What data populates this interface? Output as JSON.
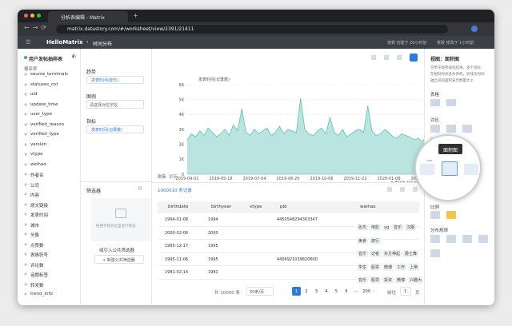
{
  "browser": {
    "tab_title": "分析表编辑 - Matrix",
    "url": "matrix.datastory.com/#/worksheet/view/2391/21411"
  },
  "header": {
    "brand": "HelloMatrix",
    "page": "时间分布",
    "created": "季数 创建于 20小时前",
    "modified": "季数 修改于 1小时前"
  },
  "sidebar": {
    "table_name": "用户发帖抽样表",
    "group": "报名称",
    "fields": [
      "source_terminals",
      "statuses_cnt",
      "uid",
      "update_time",
      "user_type",
      "verified_reason",
      "verified_type",
      "version",
      "vtype",
      "weihao",
      "作者名",
      "公司",
      "内容",
      "原文链接",
      "发表时间",
      "城市",
      "头像",
      "点赞数",
      "表情符号",
      "评论数",
      "话题标签",
      "转发数",
      "trend_info"
    ]
  },
  "config": {
    "trend_label": "趋势",
    "trend_value": "发表时间(按日)",
    "legend_label": "图例",
    "legend_placeholder": "请选择对应字段",
    "metric_label": "指标",
    "metric_value": "发表时间(记录数)",
    "filter_title": "筛选器",
    "filter_hint": "拖拽字段到这里进行筛选",
    "filter_public": "或引入公共筛选器",
    "filter_new": "+ 新建公共筛选器"
  },
  "chart_data": {
    "type": "area",
    "title": "发表时间(记录数)",
    "x_label": "publish_timestamp",
    "categories": [
      "2019-04-01",
      null,
      null,
      null,
      null,
      null,
      null,
      null,
      "2019-05-18",
      null,
      null,
      null,
      null,
      null,
      null,
      null,
      "2019-07-04",
      null,
      null,
      null,
      null,
      null,
      null,
      null,
      "2019-08-20",
      null,
      null,
      null,
      null,
      null,
      null,
      null,
      "2019-10-06",
      null,
      null,
      null,
      null,
      null,
      null,
      null,
      "2019-11-22",
      null,
      null,
      null,
      null,
      null,
      null,
      null,
      "2020-01-08",
      null,
      null,
      null,
      null,
      null,
      null,
      null,
      "2020-02-24",
      null,
      null,
      null
    ],
    "series": [
      {
        "name": "发表时间(记录数)",
        "color": "#5bc2b5",
        "fill": "#b9e4df",
        "values": [
          2300,
          2700,
          2500,
          2900,
          2600,
          3100,
          2800,
          2500,
          2700,
          3000,
          2600,
          3300,
          2900,
          4400,
          2800,
          2600,
          3000,
          2700,
          2900,
          3100,
          2600,
          2800,
          3200,
          2700,
          3000,
          2900,
          2800,
          5100,
          3000,
          2700,
          2600,
          2900,
          3100,
          2700,
          3800,
          2800,
          2600,
          3000,
          2500,
          2700,
          2900,
          3000,
          2800,
          4600,
          2900,
          2600,
          2700,
          3000,
          2800,
          2500,
          2400,
          2700,
          2600,
          2500,
          2300,
          2400,
          2200,
          2600,
          2500,
          2400
        ]
      }
    ],
    "ylim": [
      0,
      6000
    ],
    "yticks": [
      0,
      {
        "value": 1000,
        "label": "1K"
      },
      {
        "value": 2000,
        "label": "2K"
      },
      {
        "value": 3000,
        "label": "3K"
      },
      {
        "value": 4000,
        "label": "4K"
      },
      {
        "value": 5000,
        "label": "5K"
      },
      {
        "value": 6000,
        "label": "6K"
      }
    ],
    "grid": true
  },
  "toolbar": {
    "refresh": "刷新",
    "update": "更新"
  },
  "record_count": "1000010 条记录",
  "table": {
    "columns": [
      "birthdate",
      "birthyear",
      "vtype",
      "pid",
      "weihao"
    ],
    "rows": [
      [
        "1994-01-08",
        "1994",
        null,
        "4450548294363347",
        [
          "张杰",
          "电影",
          "yg",
          "音乐",
          "汉服"
        ]
      ],
      [
        "2000-02-06",
        "2000",
        null,
        null,
        [
          "美食",
          "旅行"
        ]
      ],
      [
        "1995-12-17",
        "1995",
        null,
        null,
        [
          "音乐",
          "记者",
          "东方神起",
          "爵士舞"
        ]
      ],
      [
        "1995-11-06",
        "1995",
        null,
        "4406921039820600",
        [
          "学生",
          "股票",
          "微博",
          "工作",
          "上帝"
        ]
      ],
      [
        "1981-02-14",
        "1981",
        null,
        null,
        [
          "音乐",
          "股票",
          "投资",
          "微博",
          "兴趣大"
        ]
      ]
    ]
  },
  "pagination": {
    "total": "共 10000 条",
    "page_size": "50条/页",
    "pages": [
      "1",
      "2",
      "3",
      "4",
      "5",
      "6",
      "···",
      "200"
    ],
    "goto": "前往",
    "goto_value": "1",
    "unit": "页"
  },
  "right_panel": {
    "title": "视图：面积图",
    "description": [
      "可用于趋势研究结果、多个指标",
      "在相同时间多条件的，折线与时间",
      "轴之间的面积表示数量大小"
    ],
    "sections": [
      "表格",
      "对比",
      "趋势",
      "比例",
      "分布规律"
    ],
    "tooltip": "面积图"
  }
}
